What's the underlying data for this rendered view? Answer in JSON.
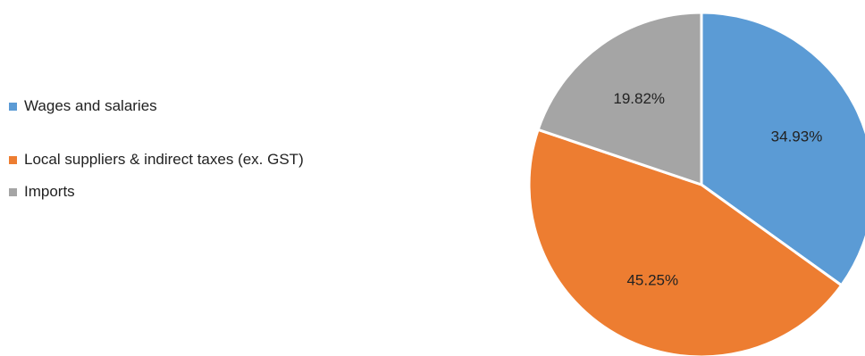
{
  "chart_data": {
    "type": "pie",
    "title": "",
    "legend_position": "left",
    "slices": [
      {
        "label": "Wages and salaries",
        "value": 34.93,
        "value_label": "34.93%",
        "color": "#5B9BD5"
      },
      {
        "label": "Local suppliers & indirect taxes (ex. GST)",
        "value": 45.25,
        "value_label": "45.25%",
        "color": "#ED7D31"
      },
      {
        "label": "Imports",
        "value": 19.82,
        "value_label": "19.82%",
        "color": "#A5A5A5"
      }
    ]
  }
}
